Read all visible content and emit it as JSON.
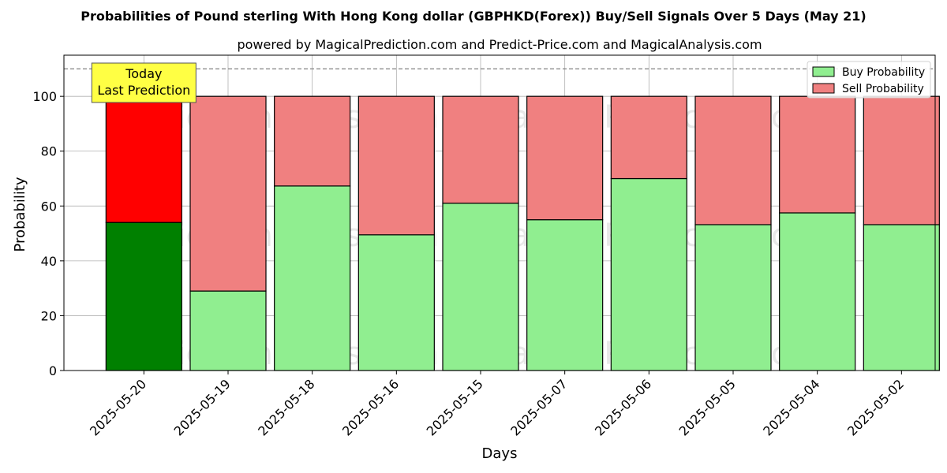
{
  "chart_data": {
    "type": "bar",
    "stacked": true,
    "title": "Probabilities of Pound sterling With Hong Kong dollar (GBPHKD(Forex)) Buy/Sell Signals Over 5 Days (May 21)",
    "subtitle": "powered by MagicalPrediction.com and Predict-Price.com and MagicalAnalysis.com",
    "xlabel": "Days",
    "ylabel": "Probability",
    "ylim": [
      0,
      115
    ],
    "yticks": [
      0,
      20,
      40,
      60,
      80,
      100
    ],
    "grid": true,
    "legend_position": "top-right",
    "reference_line": 110,
    "categories": [
      "2025-05-20",
      "2025-05-19",
      "2025-05-18",
      "2025-05-16",
      "2025-05-15",
      "2025-05-07",
      "2025-05-06",
      "2025-05-05",
      "2025-05-04",
      "2025-05-02"
    ],
    "series": [
      {
        "name": "Buy Probability",
        "color": "#90ee90",
        "highlight_color": "#008000",
        "values": [
          54,
          29,
          67.3,
          49.5,
          61,
          55,
          70,
          53.2,
          57.5,
          53.2
        ]
      },
      {
        "name": "Sell Probability",
        "color": "#f08080",
        "highlight_color": "#ff0000",
        "values": [
          46,
          71,
          32.7,
          50.5,
          39,
          45,
          30,
          46.8,
          42.5,
          46.8
        ]
      }
    ],
    "annotation": {
      "lines": [
        "Today",
        "Last Prediction"
      ],
      "category_index": 0,
      "background": "#ffff44"
    },
    "watermarks": [
      "MagicalAnalysis.com",
      "MagicalPrediction.com"
    ]
  }
}
